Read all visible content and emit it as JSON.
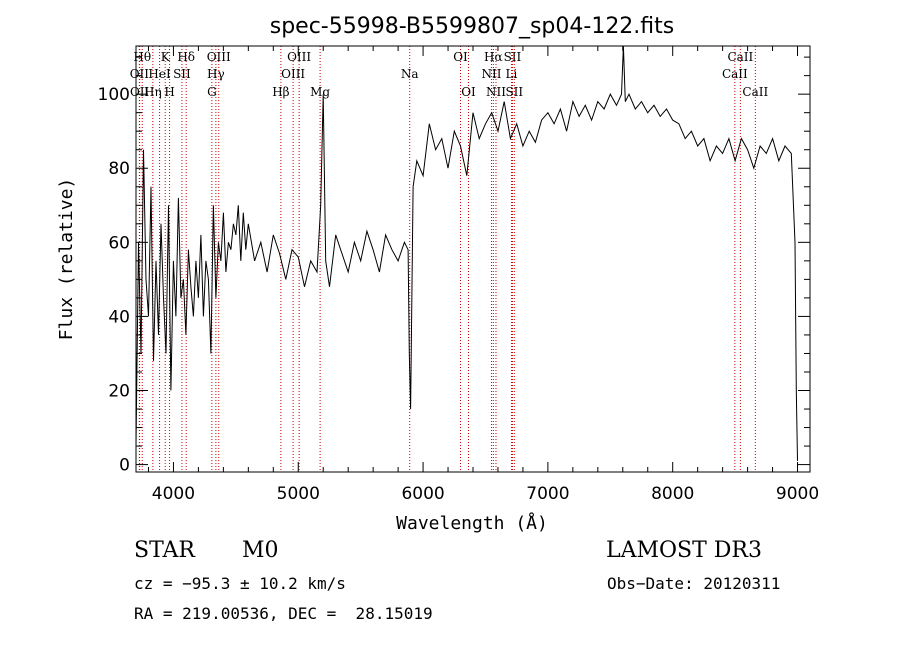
{
  "chart_data": {
    "type": "line",
    "title": "spec-55998-B5599807_sp04-122.fits",
    "xlabel": "Wavelength (Å)",
    "ylabel": "Flux (relative)",
    "xlim": [
      3700,
      9100
    ],
    "ylim": [
      -2,
      113
    ],
    "x_ticks": [
      4000,
      5000,
      6000,
      7000,
      8000,
      9000
    ],
    "x_tick_labels": [
      "4000",
      "5000",
      "6000",
      "7000",
      "8000",
      "9000"
    ],
    "y_ticks": [
      0,
      20,
      40,
      60,
      80,
      100
    ],
    "y_tick_labels": [
      "0",
      "20",
      "40",
      "60",
      "80",
      "100"
    ],
    "grid": false,
    "series": [
      {
        "name": "flux",
        "x": [
          3700,
          3720,
          3740,
          3760,
          3780,
          3800,
          3820,
          3840,
          3860,
          3880,
          3900,
          3920,
          3940,
          3960,
          3980,
          4000,
          4020,
          4040,
          4060,
          4080,
          4100,
          4120,
          4140,
          4160,
          4180,
          4200,
          4220,
          4240,
          4260,
          4280,
          4300,
          4320,
          4340,
          4360,
          4380,
          4400,
          4420,
          4440,
          4460,
          4480,
          4500,
          4520,
          4540,
          4560,
          4580,
          4600,
          4650,
          4700,
          4750,
          4800,
          4850,
          4900,
          4950,
          5000,
          5050,
          5100,
          5150,
          5180,
          5200,
          5220,
          5250,
          5300,
          5350,
          5400,
          5450,
          5500,
          5550,
          5600,
          5650,
          5700,
          5750,
          5800,
          5850,
          5880,
          5890,
          5900,
          5920,
          5950,
          6000,
          6050,
          6100,
          6150,
          6200,
          6250,
          6300,
          6350,
          6400,
          6450,
          6500,
          6550,
          6600,
          6650,
          6700,
          6750,
          6800,
          6850,
          6900,
          6950,
          7000,
          7050,
          7100,
          7150,
          7200,
          7250,
          7300,
          7350,
          7400,
          7450,
          7500,
          7550,
          7590,
          7605,
          7620,
          7650,
          7700,
          7750,
          7800,
          7850,
          7900,
          7950,
          8000,
          8050,
          8100,
          8150,
          8200,
          8250,
          8300,
          8350,
          8400,
          8450,
          8500,
          8550,
          8600,
          8650,
          8700,
          8750,
          8800,
          8850,
          8900,
          8950,
          8980,
          8990,
          9000
        ],
        "y": [
          5,
          60,
          30,
          85,
          50,
          40,
          75,
          28,
          55,
          35,
          65,
          45,
          30,
          70,
          20,
          55,
          40,
          72,
          45,
          50,
          35,
          58,
          48,
          40,
          55,
          45,
          62,
          40,
          55,
          50,
          30,
          70,
          45,
          60,
          55,
          68,
          52,
          60,
          58,
          65,
          62,
          70,
          55,
          68,
          58,
          65,
          55,
          60,
          52,
          62,
          57,
          50,
          58,
          56,
          48,
          55,
          52,
          70,
          100,
          55,
          48,
          62,
          57,
          52,
          60,
          55,
          63,
          58,
          52,
          62,
          58,
          55,
          60,
          58,
          30,
          15,
          75,
          82,
          78,
          92,
          85,
          88,
          80,
          90,
          86,
          78,
          95,
          88,
          92,
          95,
          90,
          98,
          88,
          92,
          86,
          90,
          87,
          93,
          95,
          92,
          96,
          90,
          98,
          94,
          97,
          93,
          98,
          96,
          100,
          97,
          100,
          113,
          98,
          100,
          96,
          98,
          95,
          97,
          94,
          96,
          93,
          92,
          88,
          90,
          86,
          88,
          82,
          86,
          84,
          88,
          82,
          88,
          85,
          80,
          86,
          84,
          88,
          82,
          86,
          84,
          60,
          20,
          1
        ]
      }
    ],
    "line_labels": [
      {
        "text": "Hθ",
        "wave": 3750,
        "row": 1
      },
      {
        "text": "OII",
        "wave": 3727,
        "row": 2
      },
      {
        "text": "OII",
        "wave": 3729,
        "row": 3
      },
      {
        "text": "K",
        "wave": 3934,
        "row": 1
      },
      {
        "text": "HeI",
        "wave": 3889,
        "row": 2
      },
      {
        "text": "Hη",
        "wave": 3835,
        "row": 3
      },
      {
        "text": "SII",
        "wave": 4068,
        "row": 2
      },
      {
        "text": "H",
        "wave": 3969,
        "row": 3
      },
      {
        "text": "Hδ",
        "wave": 4102,
        "row": 1
      },
      {
        "text": "OIII",
        "wave": 4363,
        "row": 1
      },
      {
        "text": "Hγ",
        "wave": 4340,
        "row": 2
      },
      {
        "text": "G",
        "wave": 4308,
        "row": 3
      },
      {
        "text": "Hβ",
        "wave": 4861,
        "row": 3
      },
      {
        "text": "OIII",
        "wave": 5007,
        "row": 1
      },
      {
        "text": "OIII",
        "wave": 4959,
        "row": 2
      },
      {
        "text": "Mg",
        "wave": 5175,
        "row": 3
      },
      {
        "text": "Na",
        "wave": 5893,
        "row": 2
      },
      {
        "text": "OI",
        "wave": 6300,
        "row": 1
      },
      {
        "text": "OI",
        "wave": 6364,
        "row": 3
      },
      {
        "text": "Hα",
        "wave": 6563,
        "row": 1
      },
      {
        "text": "SII",
        "wave": 6716,
        "row": 1
      },
      {
        "text": "NII",
        "wave": 6548,
        "row": 2
      },
      {
        "text": "Li",
        "wave": 6708,
        "row": 2
      },
      {
        "text": "NII",
        "wave": 6584,
        "row": 3
      },
      {
        "text": "SII",
        "wave": 6731,
        "row": 3
      },
      {
        "text": "CaII",
        "wave": 8542,
        "row": 1
      },
      {
        "text": "CaII",
        "wave": 8498,
        "row": 2
      },
      {
        "text": "CaII",
        "wave": 8662,
        "row": 3
      }
    ],
    "line_marks": [
      3727,
      3729,
      3750,
      3835,
      3889,
      3934,
      3969,
      4068,
      4102,
      4308,
      4340,
      4363,
      4861,
      4959,
      5007,
      5175,
      5893,
      6300,
      6364,
      6548,
      6563,
      6584,
      6708,
      6716,
      6731,
      8498,
      8542,
      8662
    ]
  },
  "info": {
    "object_class": "STAR",
    "subclass": "M0",
    "cz": "cz = −95.3 ± 10.2 km/s",
    "coords": "RA = 219.00536, DEC =  28.15019",
    "survey": "LAMOST DR3",
    "obs_date": "Obs−Date: 20120311"
  },
  "colors": {
    "spectrum": "#000000",
    "line_marks": "#cc0000",
    "axes": "#000000"
  }
}
